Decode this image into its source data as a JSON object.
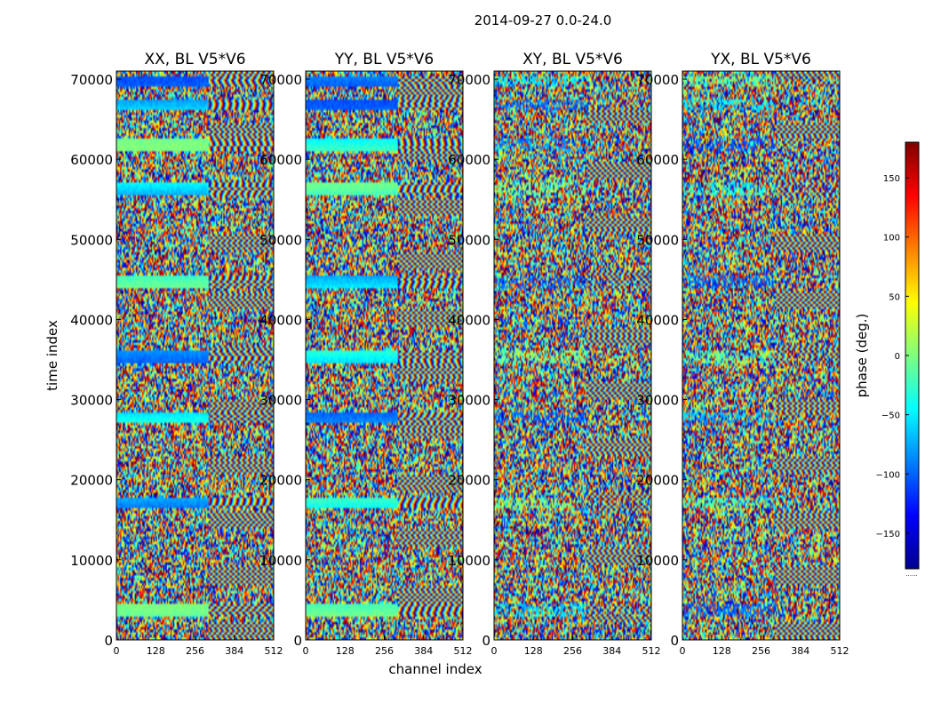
{
  "figure": {
    "suptitle": "2014-09-27 0.0-24.0",
    "xlabel": "channel index",
    "ylabel": "time index"
  },
  "chart_data": {
    "type": "heatmap",
    "colormap": "jet",
    "x_range": [
      0,
      512
    ],
    "y_range": [
      0,
      71000
    ],
    "x_ticks": [
      0,
      128,
      256,
      384,
      512
    ],
    "y_ticks": [
      0,
      10000,
      20000,
      30000,
      40000,
      50000,
      60000,
      70000
    ],
    "panels": [
      {
        "title": "XX, BL V5*V6",
        "polarization": "XX"
      },
      {
        "title": "YY, BL V5*V6",
        "polarization": "YY"
      },
      {
        "title": "XY, BL V5*V6",
        "polarization": "XY"
      },
      {
        "title": "YX, BL V5*V6",
        "polarization": "YX"
      }
    ],
    "colorbar": {
      "label": "phase (deg.)",
      "range": [
        -180,
        180
      ],
      "ticks": [
        -150,
        -100,
        -50,
        0,
        50,
        100,
        150
      ],
      "tick_labels": [
        "−150",
        "−100",
        "−50",
        "0",
        "50",
        "100",
        "150"
      ],
      "extra_label": "......"
    },
    "bands": {
      "coherent_time_ranges": [
        [
          3000,
          4500
        ],
        [
          16500,
          17800
        ],
        [
          27000,
          28500
        ],
        [
          34500,
          36200
        ],
        [
          44000,
          45500
        ],
        [
          55500,
          57000
        ],
        [
          61000,
          62500
        ],
        [
          66000,
          67500
        ],
        [
          69000,
          70500
        ]
      ],
      "fringe_channel_start": 300
    }
  }
}
